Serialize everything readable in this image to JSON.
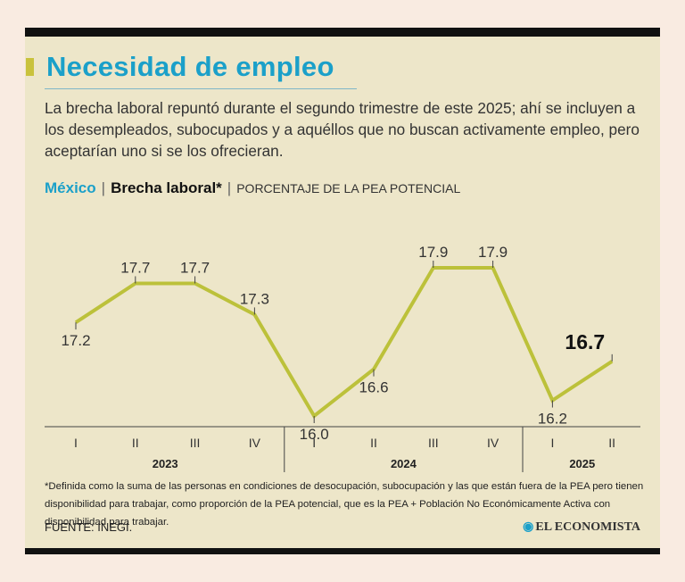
{
  "header": {
    "title": "Necesidad de empleo",
    "subtitle": "La brecha laboral repuntó durante el segundo trimestre de este 2025; ahí se incluyen a los desempleados, subocupados y a aquéllos que no buscan activamente empleo, pero aceptarían uno si se los ofrecieran."
  },
  "chart_head": {
    "country": "México",
    "separator": "|",
    "metric": "Brecha laboral*",
    "unit": "PORCENTAJE DE LA PEA POTENCIAL"
  },
  "chart_data": {
    "type": "line",
    "categories": [
      "I",
      "II",
      "III",
      "IV",
      "I",
      "II",
      "III",
      "IV",
      "I",
      "II"
    ],
    "groups": [
      {
        "label": "2023",
        "count": 4
      },
      {
        "label": "2024",
        "count": 4
      },
      {
        "label": "2025",
        "count": 2
      }
    ],
    "series": [
      {
        "values": [
          17.2,
          17.7,
          17.7,
          17.3,
          16.0,
          16.6,
          17.9,
          17.9,
          16.2,
          16.7
        ]
      }
    ],
    "data_labels": [
      "17.2",
      "17.7",
      "17.7",
      "17.3",
      "16.0",
      "16.6",
      "17.9",
      "17.9",
      "16.2",
      "16.7"
    ],
    "highlight_last": true,
    "line_color": "#bcc13a",
    "grid": false
  },
  "footnote": "*Definida como la suma de las personas en condiciones de desocupación, subocupación y las que están fuera de la PEA pero tienen disponibilidad para trabajar, como proporción de la PEA potencial, que es la PEA + Población No Económicamente Activa con disponibilidad para trabajar.",
  "source": "FUENTE: INEGI.",
  "brand": "EL ECONOMISTA",
  "colors": {
    "accent": "#1ba0c9",
    "line": "#bcc13a",
    "card_bg": "#ede6c9",
    "page_bg": "#f9ebe1"
  }
}
